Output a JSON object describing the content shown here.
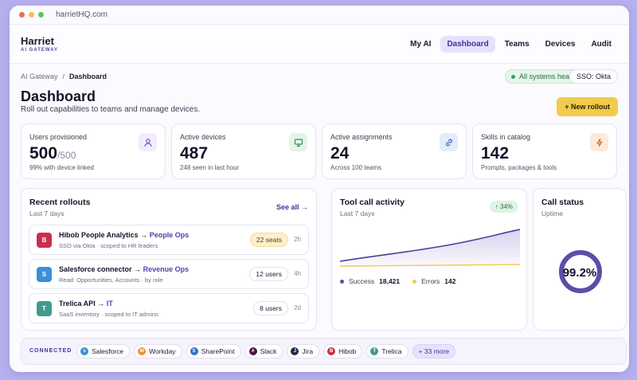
{
  "browser": {
    "url": "harrietHQ.com",
    "url_display": "harrietHQ.com"
  },
  "brand": {
    "name": "Harriet",
    "sub": "AI GATEWAY"
  },
  "nav": [
    {
      "label": "My AI"
    },
    {
      "label": "Dashboard",
      "active": true
    },
    {
      "label": "Teams"
    },
    {
      "label": "Devices"
    },
    {
      "label": "Audit"
    }
  ],
  "breadcrumb": {
    "parent": "AI Gateway",
    "sep": "/",
    "current": "Dashboard"
  },
  "status": {
    "health": "All systems healthy",
    "sso": "SSO: Okta"
  },
  "page": {
    "title": "Dashboard",
    "subtitle": "Roll out capabilities to teams and manage devices.",
    "new_button": "+ New rollout"
  },
  "kpis": [
    {
      "label": "Users provisioned",
      "value": "500",
      "of": "/500",
      "note": "99% with device linked",
      "icon": "user-icon",
      "color": "#f1ebfd"
    },
    {
      "label": "Active devices",
      "value": "487",
      "of": "",
      "note": "248 seen in last hour",
      "icon": "monitor-icon",
      "color": "#e3f4e8"
    },
    {
      "label": "Active assignments",
      "value": "24",
      "of": "",
      "note": "Across 100 teams",
      "icon": "link-icon",
      "color": "#e4ebfb"
    },
    {
      "label": "Skills in catalog",
      "value": "142",
      "of": "",
      "note": "Prompts, packages & tools",
      "icon": "bolt-icon",
      "color": "#fcebd9"
    }
  ],
  "rollouts": {
    "title": "Recent rollouts",
    "sub": "Last 7 days",
    "see_all": "See all →",
    "items": [
      {
        "initial": "B",
        "color": "#c92e50",
        "name": "Hibob People Analytics",
        "arrow": "→",
        "team": "People Ops",
        "sub": "SSO via Okta · scoped to HR leaders",
        "pill": "22 seats",
        "warn": true,
        "time": "2h"
      },
      {
        "initial": "S",
        "color": "#3a8fd6",
        "name": "Salesforce connector",
        "arrow": "→",
        "team": "Revenue Ops",
        "sub": "Read: Opportunities, Accounts · by role",
        "pill": "12 users",
        "warn": false,
        "time": "4h"
      },
      {
        "initial": "T",
        "color": "#3f9b8e",
        "name": "Trelica API",
        "arrow": "→",
        "team": "IT",
        "sub": "SaaS inventory · scoped to IT admins",
        "pill": "8 users",
        "warn": false,
        "time": "2d"
      }
    ]
  },
  "tool_calls": {
    "title": "Tool call activity",
    "sub": "Last 7 days",
    "change": "↑ 34%",
    "success_label": "Success",
    "success_value": "18,421",
    "errors_label": "Errors",
    "errors_value": "142",
    "success_color": "#5a4fa8",
    "errors_color": "#f1cb4d"
  },
  "call_status": {
    "title": "Call status",
    "sub": "Uptime",
    "value": "99.2%",
    "fraction": 0.992
  },
  "connected": {
    "label": "CONNECTED",
    "items": [
      {
        "name": "Salesforce",
        "initial": "s",
        "color": "#3a8fd6"
      },
      {
        "name": "Workday",
        "initial": "W",
        "color": "#e8913a"
      },
      {
        "name": "SharePoint",
        "initial": "S",
        "color": "#2f6fcb"
      },
      {
        "name": "Slack",
        "initial": "#",
        "color": "#4a154b"
      },
      {
        "name": "Jira",
        "initial": "J",
        "color": "#1f2a4a"
      },
      {
        "name": "Hibob",
        "initial": "B",
        "color": "#c92e50"
      },
      {
        "name": "Trelica",
        "initial": "T",
        "color": "#3f9b8e"
      }
    ],
    "more": "+ 33 more"
  }
}
